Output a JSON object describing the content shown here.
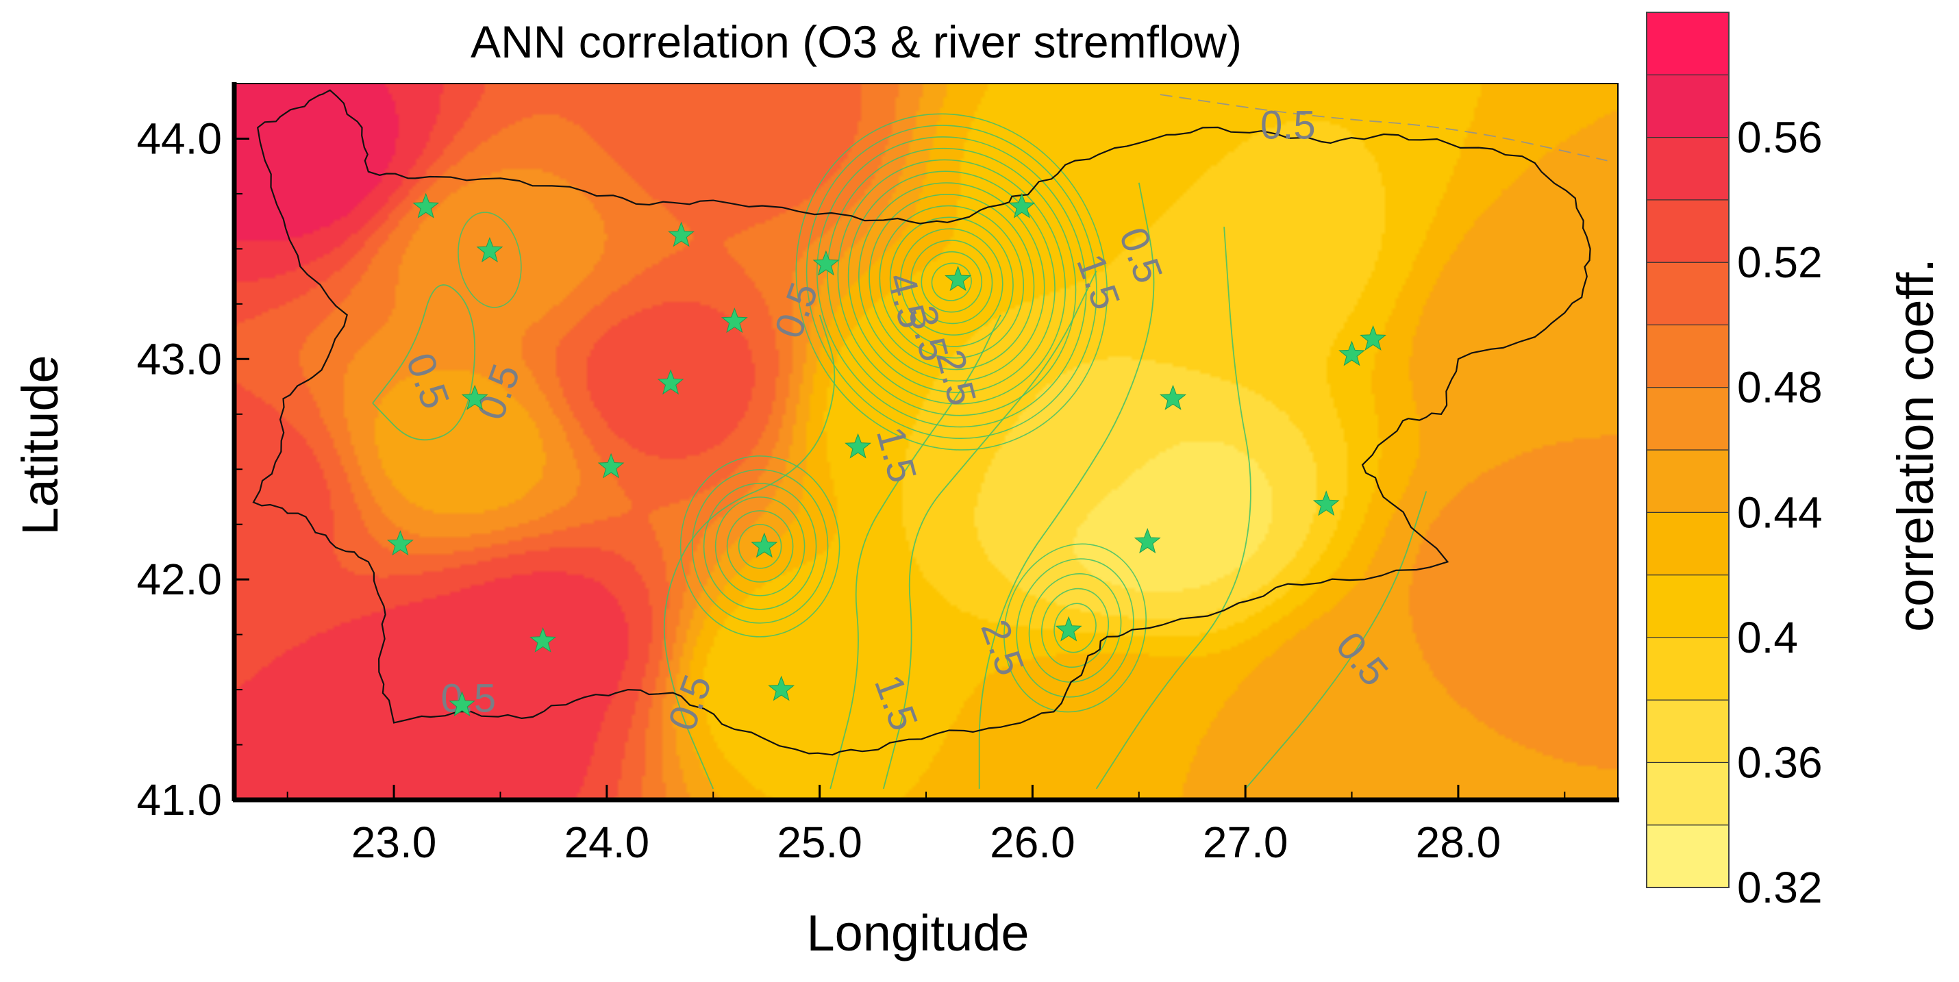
{
  "chart_data": {
    "type": "heatmap",
    "title": "ANN correlation (O3 & river stremflow)",
    "xlabel": "Longitude",
    "ylabel": "Latitude",
    "xlim": [
      22.25,
      28.75
    ],
    "ylim": [
      41.0,
      44.25
    ],
    "x_ticks": [
      "23.0",
      "24.0",
      "25.0",
      "26.0",
      "27.0",
      "28.0"
    ],
    "x_tick_values": [
      23.0,
      24.0,
      25.0,
      26.0,
      27.0,
      28.0
    ],
    "y_ticks": [
      "41.0",
      "42.0",
      "43.0",
      "44.0"
    ],
    "y_tick_values": [
      41.0,
      42.0,
      43.0,
      44.0
    ],
    "colorbar": {
      "label": "correlation coeff.",
      "levels": [
        0.32,
        0.34,
        0.36,
        0.38,
        0.4,
        0.42,
        0.44,
        0.46,
        0.48,
        0.5,
        0.52,
        0.54,
        0.56,
        0.58
      ],
      "tick_labels": [
        "0.32",
        "0.36",
        "0.4",
        "0.44",
        "0.48",
        "0.52",
        "0.56"
      ],
      "tick_values": [
        0.32,
        0.36,
        0.4,
        0.44,
        0.48,
        0.52,
        0.56
      ],
      "colors": [
        "#fff27a",
        "#ffe75a",
        "#ffdc3c",
        "#ffd01a",
        "#fcc500",
        "#fbb500",
        "#f9a512",
        "#f89120",
        "#f77c28",
        "#f66532",
        "#f44e3a",
        "#f23846",
        "#ef2457",
        "#ff1a5a"
      ]
    },
    "stations": [
      {
        "lon": 23.15,
        "lat": 43.69
      },
      {
        "lon": 23.45,
        "lat": 43.49
      },
      {
        "lon": 24.35,
        "lat": 43.56
      },
      {
        "lon": 25.03,
        "lat": 43.43
      },
      {
        "lon": 25.95,
        "lat": 43.69
      },
      {
        "lon": 25.65,
        "lat": 43.36
      },
      {
        "lon": 24.6,
        "lat": 43.17
      },
      {
        "lon": 24.3,
        "lat": 42.89
      },
      {
        "lon": 23.38,
        "lat": 42.82
      },
      {
        "lon": 24.02,
        "lat": 42.51
      },
      {
        "lon": 23.03,
        "lat": 42.16
      },
      {
        "lon": 25.18,
        "lat": 42.6
      },
      {
        "lon": 24.74,
        "lat": 42.15
      },
      {
        "lon": 26.66,
        "lat": 42.82
      },
      {
        "lon": 26.54,
        "lat": 42.17
      },
      {
        "lon": 27.6,
        "lat": 43.09
      },
      {
        "lon": 27.5,
        "lat": 43.02
      },
      {
        "lon": 27.38,
        "lat": 42.34
      },
      {
        "lon": 26.17,
        "lat": 41.77
      },
      {
        "lon": 23.7,
        "lat": 41.72
      },
      {
        "lon": 23.32,
        "lat": 41.43
      },
      {
        "lon": 24.82,
        "lat": 41.5
      }
    ],
    "field_centers": [
      {
        "lon": 22.6,
        "lat": 43.9,
        "value": 0.57
      },
      {
        "lon": 23.3,
        "lat": 41.4,
        "value": 0.56
      },
      {
        "lon": 23.7,
        "lat": 41.7,
        "value": 0.55
      },
      {
        "lon": 22.3,
        "lat": 42.4,
        "value": 0.53
      },
      {
        "lon": 24.3,
        "lat": 42.9,
        "value": 0.53
      },
      {
        "lon": 23.45,
        "lat": 43.5,
        "value": 0.47
      },
      {
        "lon": 23.3,
        "lat": 42.6,
        "value": 0.45
      },
      {
        "lon": 25.5,
        "lat": 42.8,
        "value": 0.4
      },
      {
        "lon": 26.6,
        "lat": 42.3,
        "value": 0.35
      },
      {
        "lon": 26.2,
        "lat": 42.55,
        "value": 0.37
      },
      {
        "lon": 27.0,
        "lat": 43.5,
        "value": 0.39
      },
      {
        "lon": 26.3,
        "lat": 43.9,
        "value": 0.41
      },
      {
        "lon": 24.9,
        "lat": 41.55,
        "value": 0.4
      },
      {
        "lon": 28.4,
        "lat": 42.0,
        "value": 0.47
      },
      {
        "lon": 28.5,
        "lat": 43.1,
        "value": 0.46
      },
      {
        "lon": 27.7,
        "lat": 41.4,
        "value": 0.46
      },
      {
        "lon": 26.4,
        "lat": 41.2,
        "value": 0.44
      },
      {
        "lon": 24.6,
        "lat": 44.1,
        "value": 0.51
      }
    ],
    "contour_labels": [
      {
        "text": "0.5",
        "lon": 23.1,
        "lat": 42.88,
        "rotate": 70
      },
      {
        "text": "0.5",
        "lon": 23.55,
        "lat": 42.83,
        "rotate": -70
      },
      {
        "text": "0.5",
        "lon": 24.95,
        "lat": 43.2,
        "rotate": -70
      },
      {
        "text": "4.5",
        "lon": 25.35,
        "lat": 43.25,
        "rotate": 75
      },
      {
        "text": "3.5",
        "lon": 25.45,
        "lat": 43.1,
        "rotate": 75
      },
      {
        "text": "2.5",
        "lon": 25.58,
        "lat": 42.9,
        "rotate": 75
      },
      {
        "text": "1.5",
        "lon": 25.3,
        "lat": 42.55,
        "rotate": 75
      },
      {
        "text": "1.5",
        "lon": 26.25,
        "lat": 43.33,
        "rotate": 70
      },
      {
        "text": "0.5",
        "lon": 26.45,
        "lat": 43.45,
        "rotate": 70
      },
      {
        "text": "0.5",
        "lon": 27.2,
        "lat": 44.0,
        "rotate": 0
      },
      {
        "text": "1.5",
        "lon": 25.3,
        "lat": 41.42,
        "rotate": 70
      },
      {
        "text": "2.5",
        "lon": 25.8,
        "lat": 41.67,
        "rotate": 70
      },
      {
        "text": "0.5",
        "lon": 24.45,
        "lat": 41.42,
        "rotate": -70
      },
      {
        "text": "0.5",
        "lon": 27.5,
        "lat": 41.6,
        "rotate": 50
      },
      {
        "text": "0.5",
        "lon": 23.35,
        "lat": 41.4,
        "rotate": 0
      }
    ]
  },
  "legend_color": "#2ecc71"
}
